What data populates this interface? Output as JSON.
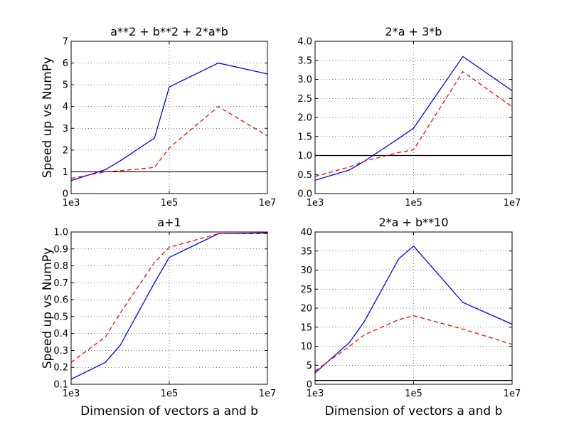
{
  "chart_data": [
    {
      "type": "line",
      "title": "a**2 + b**2 + 2*a*b",
      "xlabel": "",
      "ylabel": "Speed up vs NumPy",
      "xscale": "log",
      "xlim": [
        1000,
        10000000
      ],
      "ylim": [
        0,
        7
      ],
      "xticks": [
        {
          "v": 1000,
          "label": "1e3"
        },
        {
          "v": 100000,
          "label": "1e5"
        },
        {
          "v": 10000000,
          "label": "1e7"
        }
      ],
      "yticks": [
        {
          "v": 0,
          "label": "0"
        },
        {
          "v": 1,
          "label": "1"
        },
        {
          "v": 2,
          "label": "2"
        },
        {
          "v": 3,
          "label": "3"
        },
        {
          "v": 4,
          "label": "4"
        },
        {
          "v": 5,
          "label": "5"
        },
        {
          "v": 6,
          "label": "6"
        },
        {
          "v": 7,
          "label": "7"
        }
      ],
      "grid": true,
      "reference_line": 1,
      "colors": {
        "solid": "#0000ff",
        "dashed": "#ff0000",
        "reference": "#000000"
      },
      "series": [
        {
          "style": "solid",
          "x": [
            1000,
            5000,
            10000,
            50000,
            100000,
            1000000,
            10000000
          ],
          "y": [
            0.6,
            1.1,
            1.5,
            2.55,
            4.9,
            6.0,
            5.5
          ]
        },
        {
          "style": "dashed",
          "x": [
            1000,
            5000,
            10000,
            50000,
            100000,
            1000000,
            10000000
          ],
          "y": [
            0.7,
            1.0,
            1.05,
            1.2,
            2.1,
            4.0,
            2.65
          ]
        }
      ]
    },
    {
      "type": "line",
      "title": "2*a + 3*b",
      "xlabel": "",
      "ylabel": "",
      "xscale": "log",
      "xlim": [
        1000,
        10000000
      ],
      "ylim": [
        0,
        4
      ],
      "xticks": [
        {
          "v": 1000,
          "label": "1e3"
        },
        {
          "v": 100000,
          "label": "1e5"
        },
        {
          "v": 10000000,
          "label": "1e7"
        }
      ],
      "yticks": [
        {
          "v": 0,
          "label": "0.0"
        },
        {
          "v": 0.5,
          "label": "0.5"
        },
        {
          "v": 1,
          "label": "1.0"
        },
        {
          "v": 1.5,
          "label": "1.5"
        },
        {
          "v": 2,
          "label": "2.0"
        },
        {
          "v": 2.5,
          "label": "2.5"
        },
        {
          "v": 3,
          "label": "3.0"
        },
        {
          "v": 3.5,
          "label": "3.5"
        },
        {
          "v": 4,
          "label": "4.0"
        }
      ],
      "grid": true,
      "reference_line": 1,
      "colors": {
        "solid": "#0000ff",
        "dashed": "#ff0000",
        "reference": "#000000"
      },
      "series": [
        {
          "style": "solid",
          "x": [
            1000,
            5000,
            10000,
            50000,
            100000,
            1000000,
            10000000
          ],
          "y": [
            0.35,
            0.62,
            0.85,
            1.45,
            1.72,
            3.6,
            2.7
          ]
        },
        {
          "style": "dashed",
          "x": [
            1000,
            5000,
            10000,
            50000,
            100000,
            1000000,
            10000000
          ],
          "y": [
            0.45,
            0.7,
            0.85,
            1.08,
            1.15,
            3.2,
            2.28
          ]
        }
      ]
    },
    {
      "type": "line",
      "title": "a+1",
      "xlabel": "Dimension of vectors a and b",
      "ylabel": "Speed up vs NumPy",
      "xscale": "log",
      "xlim": [
        1000,
        10000000
      ],
      "ylim": [
        0.1,
        1.0
      ],
      "xticks": [
        {
          "v": 1000,
          "label": "1e3"
        },
        {
          "v": 100000,
          "label": "1e5"
        },
        {
          "v": 10000000,
          "label": "1e7"
        }
      ],
      "yticks": [
        {
          "v": 0.1,
          "label": "0.1"
        },
        {
          "v": 0.2,
          "label": "0.2"
        },
        {
          "v": 0.3,
          "label": "0.3"
        },
        {
          "v": 0.4,
          "label": "0.4"
        },
        {
          "v": 0.5,
          "label": "0.5"
        },
        {
          "v": 0.6,
          "label": "0.6"
        },
        {
          "v": 0.7,
          "label": "0.7"
        },
        {
          "v": 0.8,
          "label": "0.8"
        },
        {
          "v": 0.9,
          "label": "0.9"
        },
        {
          "v": 1.0,
          "label": "1.0"
        }
      ],
      "grid": true,
      "reference_line": null,
      "colors": {
        "solid": "#0000ff",
        "dashed": "#ff0000",
        "reference": "#000000"
      },
      "series": [
        {
          "style": "solid",
          "x": [
            1000,
            5000,
            10000,
            50000,
            100000,
            1000000,
            10000000
          ],
          "y": [
            0.13,
            0.23,
            0.33,
            0.7,
            0.85,
            0.99,
            0.995
          ]
        },
        {
          "style": "dashed",
          "x": [
            1000,
            5000,
            10000,
            50000,
            100000,
            1000000,
            10000000
          ],
          "y": [
            0.23,
            0.38,
            0.52,
            0.82,
            0.91,
            0.99,
            0.99
          ]
        }
      ]
    },
    {
      "type": "line",
      "title": "2*a + b**10",
      "xlabel": "Dimension of vectors a and b",
      "ylabel": "",
      "xscale": "log",
      "xlim": [
        1000,
        10000000
      ],
      "ylim": [
        0,
        40
      ],
      "xticks": [
        {
          "v": 1000,
          "label": "1e3"
        },
        {
          "v": 100000,
          "label": "1e5"
        },
        {
          "v": 10000000,
          "label": "1e7"
        }
      ],
      "yticks": [
        {
          "v": 0,
          "label": "0"
        },
        {
          "v": 5,
          "label": "5"
        },
        {
          "v": 10,
          "label": "10"
        },
        {
          "v": 15,
          "label": "15"
        },
        {
          "v": 20,
          "label": "20"
        },
        {
          "v": 25,
          "label": "25"
        },
        {
          "v": 30,
          "label": "30"
        },
        {
          "v": 35,
          "label": "35"
        },
        {
          "v": 40,
          "label": "40"
        }
      ],
      "grid": true,
      "reference_line": 1,
      "colors": {
        "solid": "#0000ff",
        "dashed": "#ff0000",
        "reference": "#000000"
      },
      "series": [
        {
          "style": "solid",
          "x": [
            1000,
            5000,
            10000,
            50000,
            100000,
            1000000,
            10000000
          ],
          "y": [
            3.0,
            11.0,
            16.5,
            33.0,
            36.3,
            21.5,
            15.8
          ]
        },
        {
          "style": "dashed",
          "x": [
            1000,
            5000,
            10000,
            50000,
            100000,
            1000000,
            10000000
          ],
          "y": [
            3.5,
            10.0,
            13.0,
            17.0,
            18.0,
            14.5,
            10.5
          ]
        }
      ]
    }
  ]
}
